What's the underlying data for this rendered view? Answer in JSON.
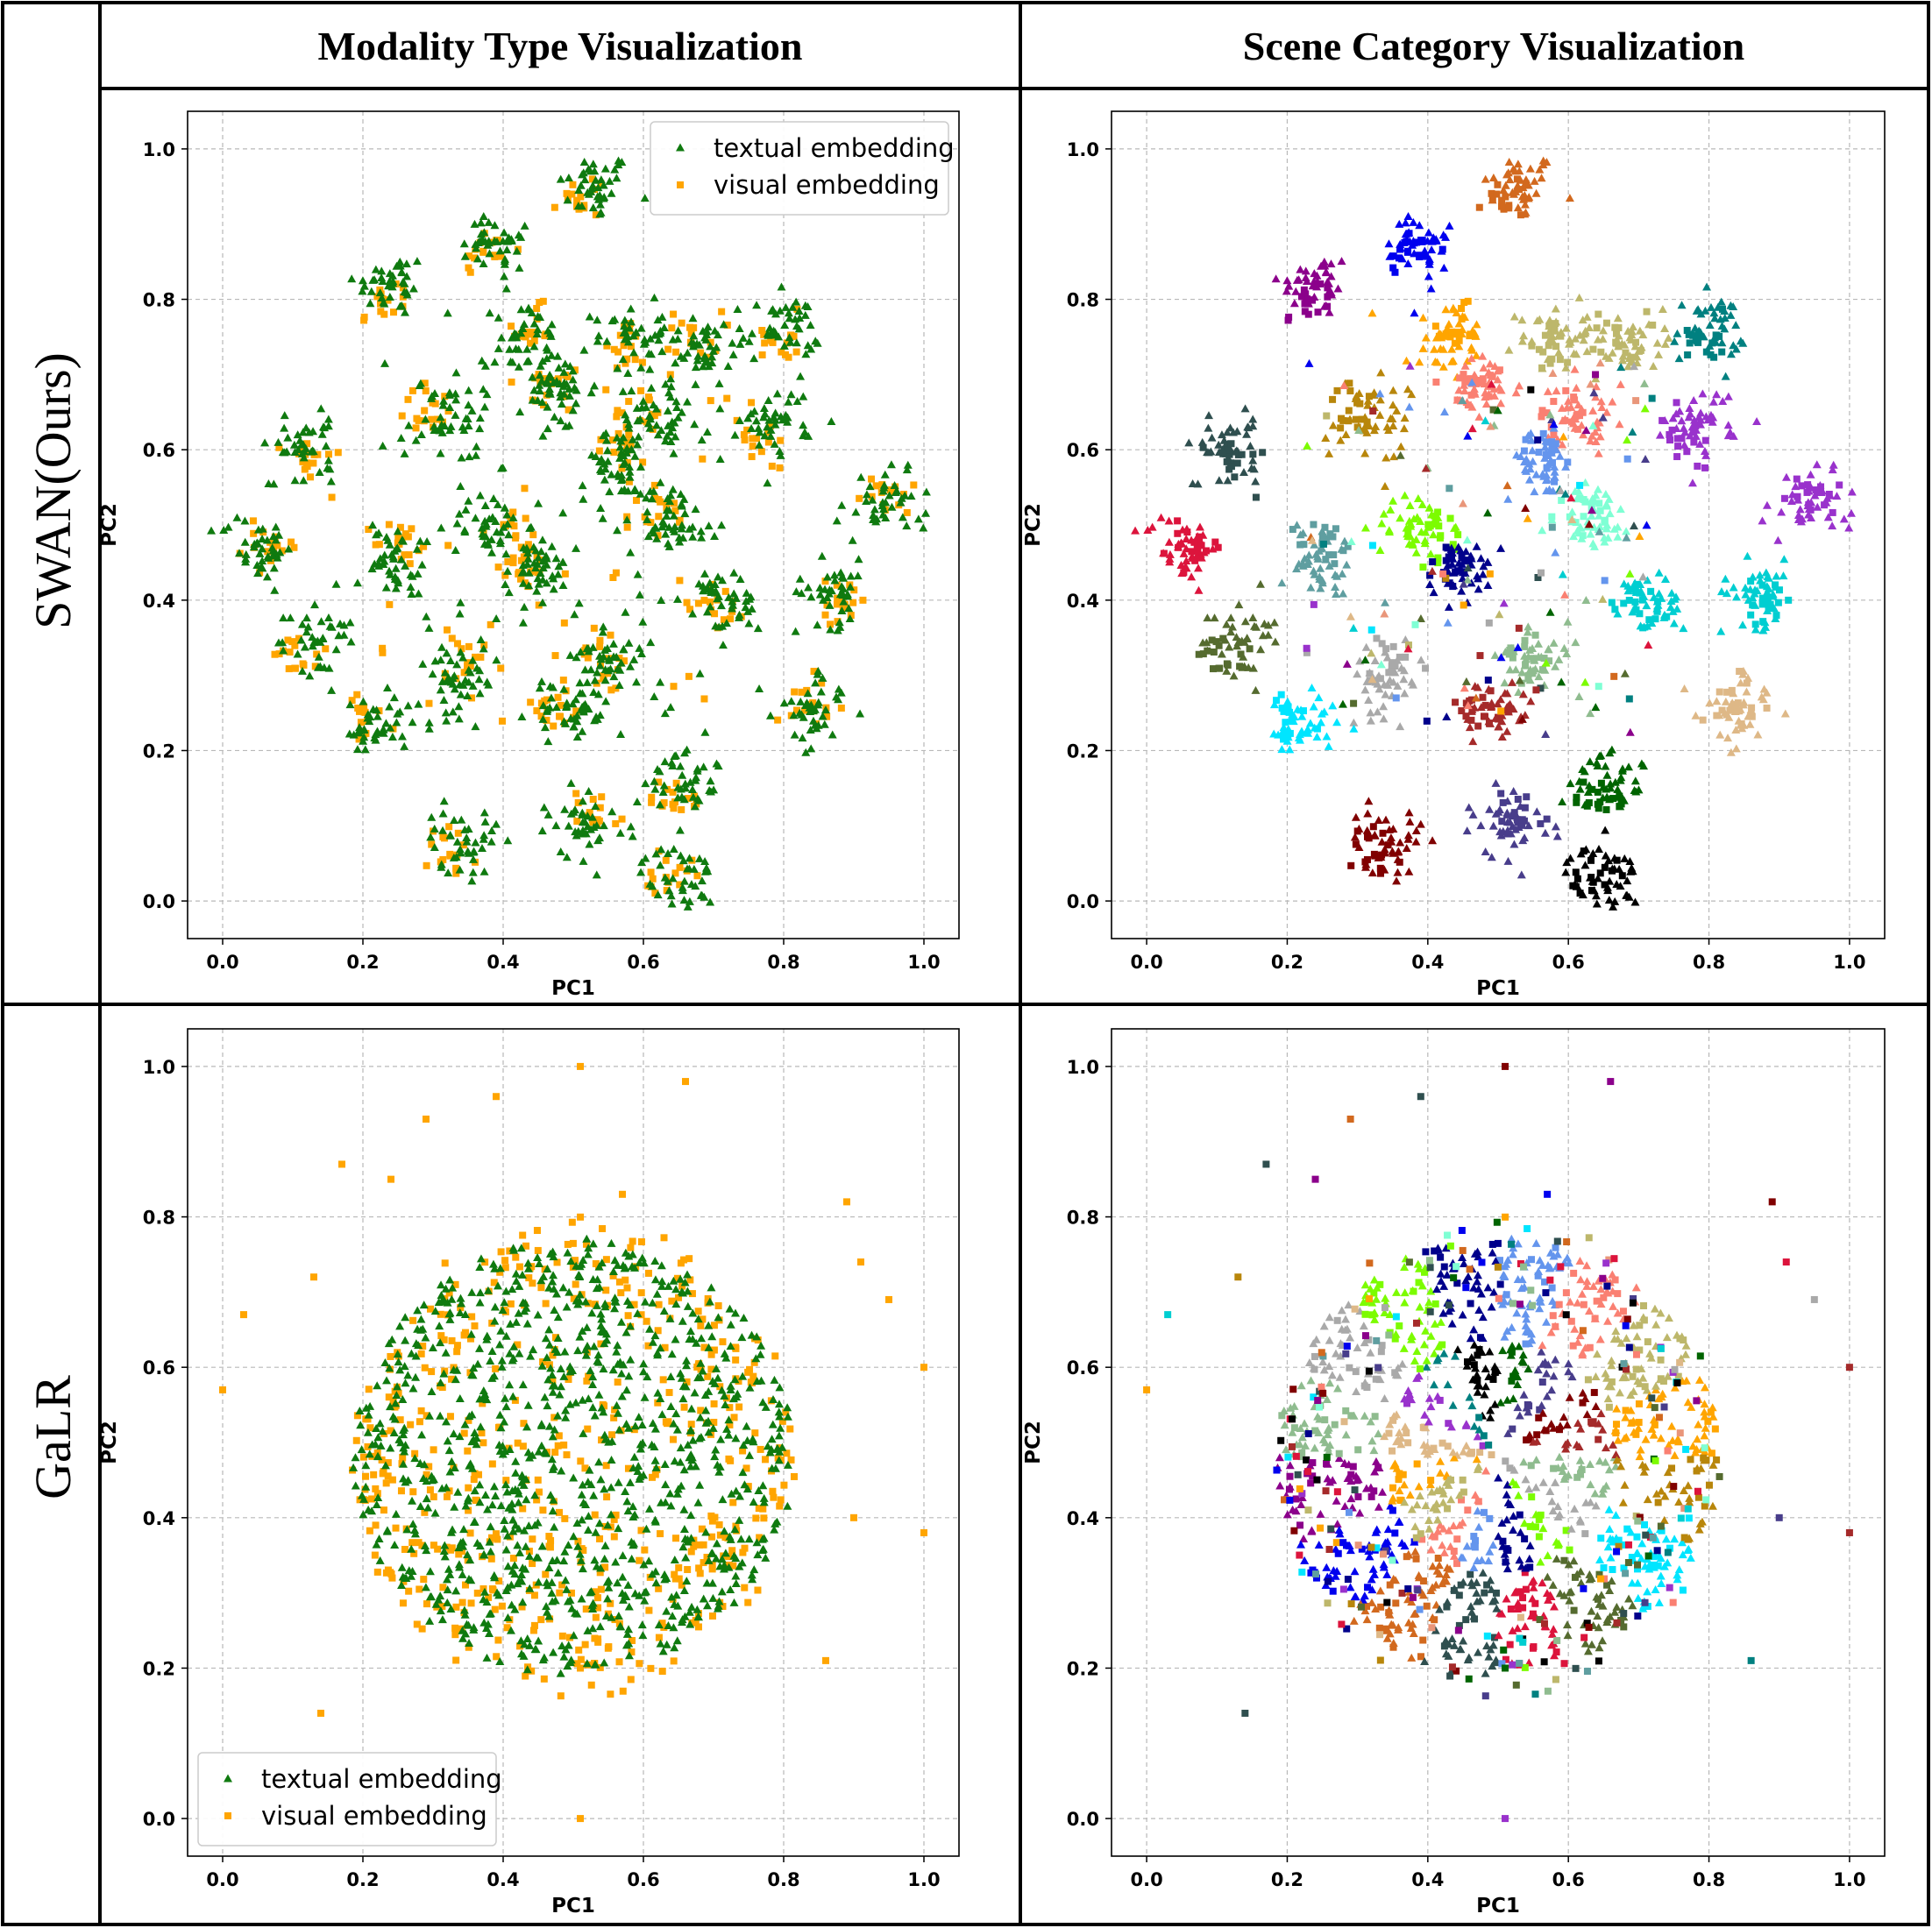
{
  "headers": {
    "col1": "Modality Type Visualization",
    "col2": "Scene Category Visualization",
    "row1": "SWAN(Ours)",
    "row2": "GaLR"
  },
  "colors": {
    "textual": "#0f7a0f",
    "visual": "#ffa500",
    "scene_palette": [
      "#8b008b",
      "#0000ee",
      "#d2691e",
      "#2f4f4f",
      "#dc143c",
      "#556b2f",
      "#00e5ff",
      "#b8860b",
      "#ffa500",
      "#bdb76b",
      "#fa8072",
      "#6495ed",
      "#00008b",
      "#7cfc00",
      "#a9a9a9",
      "#8fbc8f",
      "#a52a2a",
      "#800000",
      "#483d8b",
      "#006400",
      "#000000",
      "#008080",
      "#9932cc",
      "#deb887",
      "#00ced1",
      "#e9967a",
      "#7fffd4",
      "#5f9ea0"
    ]
  },
  "chart_data": [
    {
      "id": "swan-modality",
      "type": "scatter",
      "xlabel": "PC1",
      "ylabel": "PC2",
      "xlim": [
        -0.05,
        1.05
      ],
      "ylim": [
        -0.05,
        1.05
      ],
      "xticks": [
        "0.0",
        "0.2",
        "0.4",
        "0.6",
        "0.8",
        "1.0"
      ],
      "yticks": [
        "0.0",
        "0.2",
        "0.4",
        "0.6",
        "0.8",
        "1.0"
      ],
      "grid": true,
      "legend": "top-right",
      "series": [
        {
          "name": "textual embedding",
          "marker": "triangle",
          "color": "#0f7a0f"
        },
        {
          "name": "visual embedding",
          "marker": "square",
          "color": "#ffa500"
        }
      ],
      "clusters": [
        {
          "x": 0.53,
          "y": 0.95,
          "scene": 2
        },
        {
          "x": 0.39,
          "y": 0.87,
          "scene": 1
        },
        {
          "x": 0.24,
          "y": 0.82,
          "scene": 0
        },
        {
          "x": 0.43,
          "y": 0.75,
          "scene": 8
        },
        {
          "x": 0.58,
          "y": 0.75,
          "scene": 9
        },
        {
          "x": 0.69,
          "y": 0.74,
          "scene": 9
        },
        {
          "x": 0.8,
          "y": 0.76,
          "scene": 21
        },
        {
          "x": 0.32,
          "y": 0.64,
          "scene": 7
        },
        {
          "x": 0.48,
          "y": 0.68,
          "scene": 10
        },
        {
          "x": 0.62,
          "y": 0.64,
          "scene": 10
        },
        {
          "x": 0.79,
          "y": 0.64,
          "scene": 22
        },
        {
          "x": 0.11,
          "y": 0.6,
          "scene": 3
        },
        {
          "x": 0.56,
          "y": 0.58,
          "scene": 11
        },
        {
          "x": 0.94,
          "y": 0.53,
          "scene": 22
        },
        {
          "x": 0.05,
          "y": 0.47,
          "scene": 4
        },
        {
          "x": 0.25,
          "y": 0.45,
          "scene": 27
        },
        {
          "x": 0.38,
          "y": 0.5,
          "scene": 13
        },
        {
          "x": 0.45,
          "y": 0.44,
          "scene": 12
        },
        {
          "x": 0.64,
          "y": 0.51,
          "scene": 26
        },
        {
          "x": 0.72,
          "y": 0.4,
          "scene": 24
        },
        {
          "x": 0.87,
          "y": 0.41,
          "scene": 24
        },
        {
          "x": 0.14,
          "y": 0.35,
          "scene": 5
        },
        {
          "x": 0.34,
          "y": 0.29,
          "scene": 14
        },
        {
          "x": 0.55,
          "y": 0.32,
          "scene": 15
        },
        {
          "x": 0.5,
          "y": 0.25,
          "scene": 16
        },
        {
          "x": 0.84,
          "y": 0.25,
          "scene": 23
        },
        {
          "x": 0.22,
          "y": 0.23,
          "scene": 6
        },
        {
          "x": 0.66,
          "y": 0.16,
          "scene": 19
        },
        {
          "x": 0.34,
          "y": 0.08,
          "scene": 17
        },
        {
          "x": 0.52,
          "y": 0.1,
          "scene": 18
        },
        {
          "x": 0.65,
          "y": 0.03,
          "scene": 20
        }
      ]
    },
    {
      "id": "swan-scene",
      "type": "scatter",
      "xlabel": "PC1",
      "ylabel": "PC2",
      "xlim": [
        -0.05,
        1.05
      ],
      "ylim": [
        -0.05,
        1.05
      ],
      "xticks": [
        "0.0",
        "0.2",
        "0.4",
        "0.6",
        "0.8",
        "1.0"
      ],
      "yticks": [
        "0.0",
        "0.2",
        "0.4",
        "0.6",
        "0.8",
        "1.0"
      ],
      "grid": true
    },
    {
      "id": "galr-modality",
      "type": "scatter",
      "xlabel": "PC1",
      "ylabel": "PC2",
      "xlim": [
        -0.05,
        1.05
      ],
      "ylim": [
        -0.05,
        1.05
      ],
      "xticks": [
        "0.0",
        "0.2",
        "0.4",
        "0.6",
        "0.8",
        "1.0"
      ],
      "yticks": [
        "0.0",
        "0.2",
        "0.4",
        "0.6",
        "0.8",
        "1.0"
      ],
      "grid": true,
      "legend": "bottom-left",
      "series": [
        {
          "name": "textual embedding",
          "marker": "triangle",
          "color": "#0f7a0f"
        },
        {
          "name": "visual embedding",
          "marker": "square",
          "color": "#ffa500"
        }
      ],
      "center": {
        "x": 0.5,
        "y": 0.48
      },
      "outliers": [
        {
          "x": 0.51,
          "y": 1.0,
          "scene": 17
        },
        {
          "x": 0.66,
          "y": 0.98,
          "scene": 0
        },
        {
          "x": 0.39,
          "y": 0.96,
          "scene": 3
        },
        {
          "x": 0.29,
          "y": 0.93,
          "scene": 2
        },
        {
          "x": 0.17,
          "y": 0.87,
          "scene": 3
        },
        {
          "x": 0.24,
          "y": 0.85,
          "scene": 0
        },
        {
          "x": 0.57,
          "y": 0.83,
          "scene": 1
        },
        {
          "x": 0.89,
          "y": 0.82,
          "scene": 17
        },
        {
          "x": 0.91,
          "y": 0.74,
          "scene": 4
        },
        {
          "x": 0.13,
          "y": 0.72,
          "scene": 7
        },
        {
          "x": 0.95,
          "y": 0.69,
          "scene": 14
        },
        {
          "x": 0.03,
          "y": 0.67,
          "scene": 24
        },
        {
          "x": 1.0,
          "y": 0.6,
          "scene": 16
        },
        {
          "x": 0.0,
          "y": 0.57,
          "scene": 8
        },
        {
          "x": 0.9,
          "y": 0.4,
          "scene": 18
        },
        {
          "x": 1.0,
          "y": 0.38,
          "scene": 16
        },
        {
          "x": 0.86,
          "y": 0.21,
          "scene": 21
        },
        {
          "x": 0.51,
          "y": 0.2,
          "scene": 19
        },
        {
          "x": 0.14,
          "y": 0.14,
          "scene": 3
        },
        {
          "x": 0.51,
          "y": 0.0,
          "scene": 22
        }
      ]
    },
    {
      "id": "galr-scene",
      "type": "scatter",
      "xlabel": "PC1",
      "ylabel": "PC2",
      "xlim": [
        -0.05,
        1.05
      ],
      "ylim": [
        -0.05,
        1.05
      ],
      "xticks": [
        "0.0",
        "0.2",
        "0.4",
        "0.6",
        "0.8",
        "1.0"
      ],
      "yticks": [
        "0.0",
        "0.2",
        "0.4",
        "0.6",
        "0.8",
        "1.0"
      ],
      "grid": true
    }
  ]
}
